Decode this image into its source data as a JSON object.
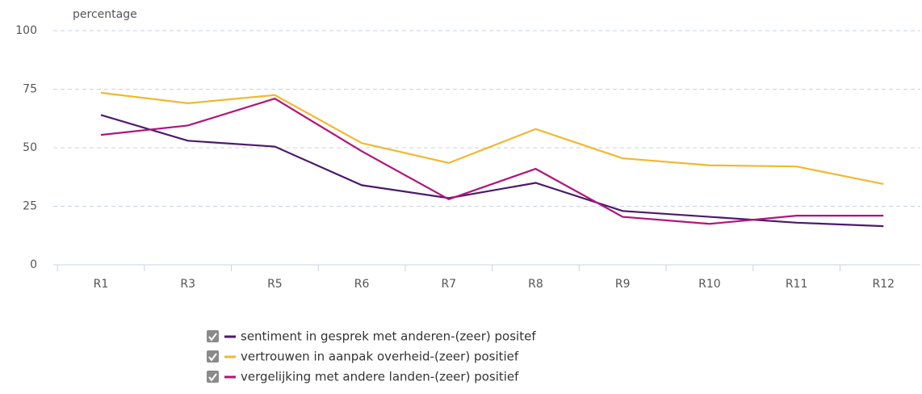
{
  "chart_data": {
    "type": "line",
    "ylabel": "percentage",
    "categories": [
      "R1",
      "R3",
      "R5",
      "R6",
      "R7",
      "R8",
      "R9",
      "R10",
      "R11",
      "R12"
    ],
    "series": [
      {
        "name": "sentiment in gesprek met anderen-(zeer) positef",
        "color": "#4b1a6b",
        "values": [
          64,
          53,
          50.5,
          34,
          28.5,
          35,
          23,
          20.5,
          18,
          16.5
        ]
      },
      {
        "name": "vertrouwen in aanpak overheid-(zeer) positief",
        "color": "#f2b830",
        "values": [
          73.5,
          69,
          72.5,
          52,
          43.5,
          58,
          45.5,
          42.5,
          42,
          34.5
        ]
      },
      {
        "name": "vergelijking met andere landen-(zeer) positief",
        "color": "#b0147a",
        "values": [
          55.5,
          59.5,
          71,
          48.5,
          28,
          41,
          20.5,
          17.5,
          21,
          21
        ]
      }
    ],
    "ylim": [
      0,
      100
    ],
    "yticks": [
      0,
      25,
      50,
      75,
      100
    ],
    "grid": true,
    "legend": "bottom"
  }
}
